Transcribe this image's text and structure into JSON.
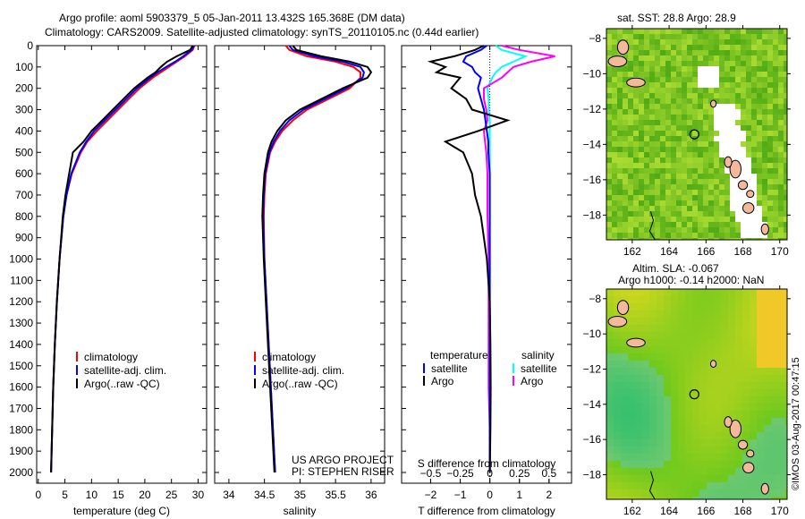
{
  "title_line1": "Argo profile: aoml 5903379_5 05-Jan-2011 13.432S 165.368E (DM data)",
  "title_line2": "Climatology: CARS2009. Satellite-adjusted climatology: synTS_20110105.nc (0.44d earlier)",
  "project": "US ARGO PROJECT",
  "pi": "PI: STEPHEN RISER",
  "copyright": "©IMOS 03-Aug-2017 00:47:15",
  "colors": {
    "climatology": "#ff0000",
    "satellite": "#0000ff",
    "argo": "#000000",
    "sal_satellite": "#00ffff",
    "sal_argo": "#ff00ff"
  },
  "chart_data": [
    {
      "type": "line",
      "id": "temperature",
      "xlabel": "temperature (deg C)",
      "ylabel": "",
      "xlim": [
        -0.3,
        31.6
      ],
      "ylim": [
        2000,
        0
      ],
      "xticks": [
        0,
        5,
        10,
        15,
        20,
        25,
        30
      ],
      "yticks": [
        0,
        100,
        200,
        300,
        400,
        500,
        600,
        700,
        800,
        900,
        1000,
        1100,
        1200,
        1300,
        1400,
        1500,
        1600,
        1700,
        1800,
        1900,
        2000
      ],
      "depth": [
        0,
        20,
        50,
        75,
        100,
        125,
        150,
        200,
        250,
        300,
        350,
        400,
        450,
        500,
        600,
        700,
        800,
        1000,
        1200,
        1400,
        1600,
        1800,
        2000
      ],
      "legend": [
        "climatology",
        "satellite-adj. clim.",
        "Argo(..raw -QC)"
      ],
      "series": [
        {
          "name": "climatology",
          "values": [
            29.3,
            29,
            27.5,
            26,
            24.5,
            23,
            21.5,
            19,
            17,
            15,
            13,
            11,
            9.2,
            8,
            6.3,
            5.3,
            4.7,
            4,
            3.5,
            3.1,
            2.8,
            2.6,
            2.4
          ]
        },
        {
          "name": "satellite-adj. clim.",
          "values": [
            29.2,
            28.8,
            27.2,
            25.7,
            24,
            22.4,
            21,
            18.5,
            16.5,
            14.5,
            12.5,
            10.5,
            9,
            7.8,
            6.2,
            5.3,
            4.7,
            4,
            3.5,
            3.1,
            2.8,
            2.6,
            2.4
          ]
        },
        {
          "name": "Argo(..raw -QC)",
          "values": [
            29,
            28.5,
            26,
            24.2,
            23,
            22,
            20.5,
            18,
            16,
            14,
            12,
            10,
            8.5,
            6.5,
            5.8,
            5.1,
            4.6,
            4,
            3.5,
            3.1,
            2.8,
            2.6,
            2.4
          ]
        }
      ]
    },
    {
      "type": "line",
      "id": "salinity",
      "xlabel": "salinity",
      "xlim": [
        33.8,
        36.19
      ],
      "ylim": [
        2000,
        0
      ],
      "xticks": [
        34,
        34.5,
        35,
        35.5,
        36
      ],
      "depth": [
        0,
        20,
        50,
        75,
        100,
        125,
        150,
        200,
        250,
        300,
        350,
        400,
        450,
        500,
        600,
        700,
        800,
        1000,
        1200,
        1400,
        1600,
        1800,
        2000
      ],
      "legend": [
        "climatology",
        "satellite-adj. clim.",
        "Argo(..raw -QC)"
      ],
      "series": [
        {
          "name": "climatology",
          "values": [
            34.8,
            34.85,
            35.1,
            35.5,
            35.75,
            35.85,
            35.85,
            35.7,
            35.4,
            35.1,
            34.9,
            34.75,
            34.65,
            34.58,
            34.52,
            34.5,
            34.49,
            34.5,
            34.53,
            34.56,
            34.59,
            34.62,
            34.65
          ]
        },
        {
          "name": "satellite-adj. clim.",
          "values": [
            34.85,
            34.9,
            35.2,
            35.6,
            35.85,
            35.9,
            35.88,
            35.65,
            35.35,
            35.05,
            34.85,
            34.72,
            34.63,
            34.57,
            34.51,
            34.49,
            34.48,
            34.5,
            34.53,
            34.56,
            34.59,
            34.62,
            34.65
          ]
        },
        {
          "name": "Argo(..raw -QC)",
          "values": [
            34.9,
            34.95,
            35.3,
            35.7,
            35.95,
            36.0,
            35.95,
            35.6,
            35.3,
            35.0,
            34.8,
            34.68,
            34.6,
            34.55,
            34.5,
            34.48,
            34.47,
            34.49,
            34.52,
            34.55,
            34.58,
            34.61,
            34.64
          ]
        }
      ]
    },
    {
      "type": "line",
      "id": "difference",
      "xlabel": "T difference from climatology",
      "x2label": "S difference from climatology",
      "xlim": [
        -2.98,
        2.76
      ],
      "ylim": [
        2000,
        0
      ],
      "xticks": [
        -2,
        -1,
        0,
        1,
        2
      ],
      "x2ticks": [
        -0.5,
        -0.25,
        0,
        0.25,
        0.5
      ],
      "depth": [
        0,
        20,
        50,
        75,
        100,
        125,
        150,
        200,
        250,
        300,
        350,
        400,
        450,
        500,
        600,
        700,
        800,
        1000,
        1200,
        1400,
        1600,
        1800,
        2000
      ],
      "legend_headers": [
        "temperature",
        "salinity"
      ],
      "legend": [
        "satellite",
        "Argo",
        "satellite",
        "Argo"
      ],
      "series": [
        {
          "name": "T satellite",
          "values": [
            -0.1,
            -0.3,
            -0.8,
            -0.9,
            -0.6,
            -0.5,
            -0.3,
            -0.4,
            -0.3,
            -0.2,
            -0.15,
            -0.1,
            -0.05,
            -0.05,
            0,
            0,
            0,
            0,
            0,
            0,
            0,
            0,
            0
          ]
        },
        {
          "name": "T Argo",
          "values": [
            -0.2,
            -0.5,
            -1.2,
            -2.0,
            -1.5,
            -1.8,
            -1.0,
            -1.3,
            -0.8,
            -0.6,
            0.6,
            -0.4,
            -1.5,
            -0.9,
            -0.6,
            -0.5,
            -0.3,
            -0.1,
            0,
            0.02,
            0.03,
            0.02,
            0
          ]
        },
        {
          "name": "S satellite",
          "values": [
            0.05,
            0.1,
            0.3,
            0.2,
            0.1,
            0.05,
            0.02,
            -0.02,
            -0.01,
            -0.01,
            0,
            0,
            0,
            0,
            0,
            0,
            0,
            0,
            0,
            0,
            0,
            0,
            0
          ]
        },
        {
          "name": "S Argo",
          "values": [
            0.1,
            0.25,
            0.55,
            0.35,
            0.2,
            0.15,
            0.1,
            -0.05,
            -0.05,
            -0.03,
            -0.02,
            -0.05,
            -0.04,
            -0.03,
            -0.02,
            -0.02,
            -0.02,
            -0.01,
            -0.01,
            -0.01,
            -0.01,
            0,
            0
          ]
        }
      ]
    }
  ],
  "maps": [
    {
      "title": "sat. SST: 28.8 Argo: 28.9",
      "lon_ticks": [
        162,
        164,
        166,
        168,
        170
      ],
      "lat_ticks": [
        -8,
        -10,
        -12,
        -14,
        -16,
        -18
      ],
      "lon_range": [
        160.6,
        170.4
      ],
      "lat_range": [
        -7.45,
        -19.4
      ],
      "argo_lon": 165.368,
      "argo_lat": -13.432
    },
    {
      "title1": "Altim. SLA: -0.067",
      "title2": "Argo h1000: -0.14 h2000: NaN",
      "lon_ticks": [
        162,
        164,
        166,
        168,
        170
      ],
      "lat_ticks": [
        -8,
        -10,
        -12,
        -14,
        -16,
        -18
      ],
      "lon_range": [
        160.6,
        170.4
      ],
      "lat_range": [
        -7.45,
        -19.4
      ],
      "argo_lon": 165.368,
      "argo_lat": -13.432
    }
  ]
}
